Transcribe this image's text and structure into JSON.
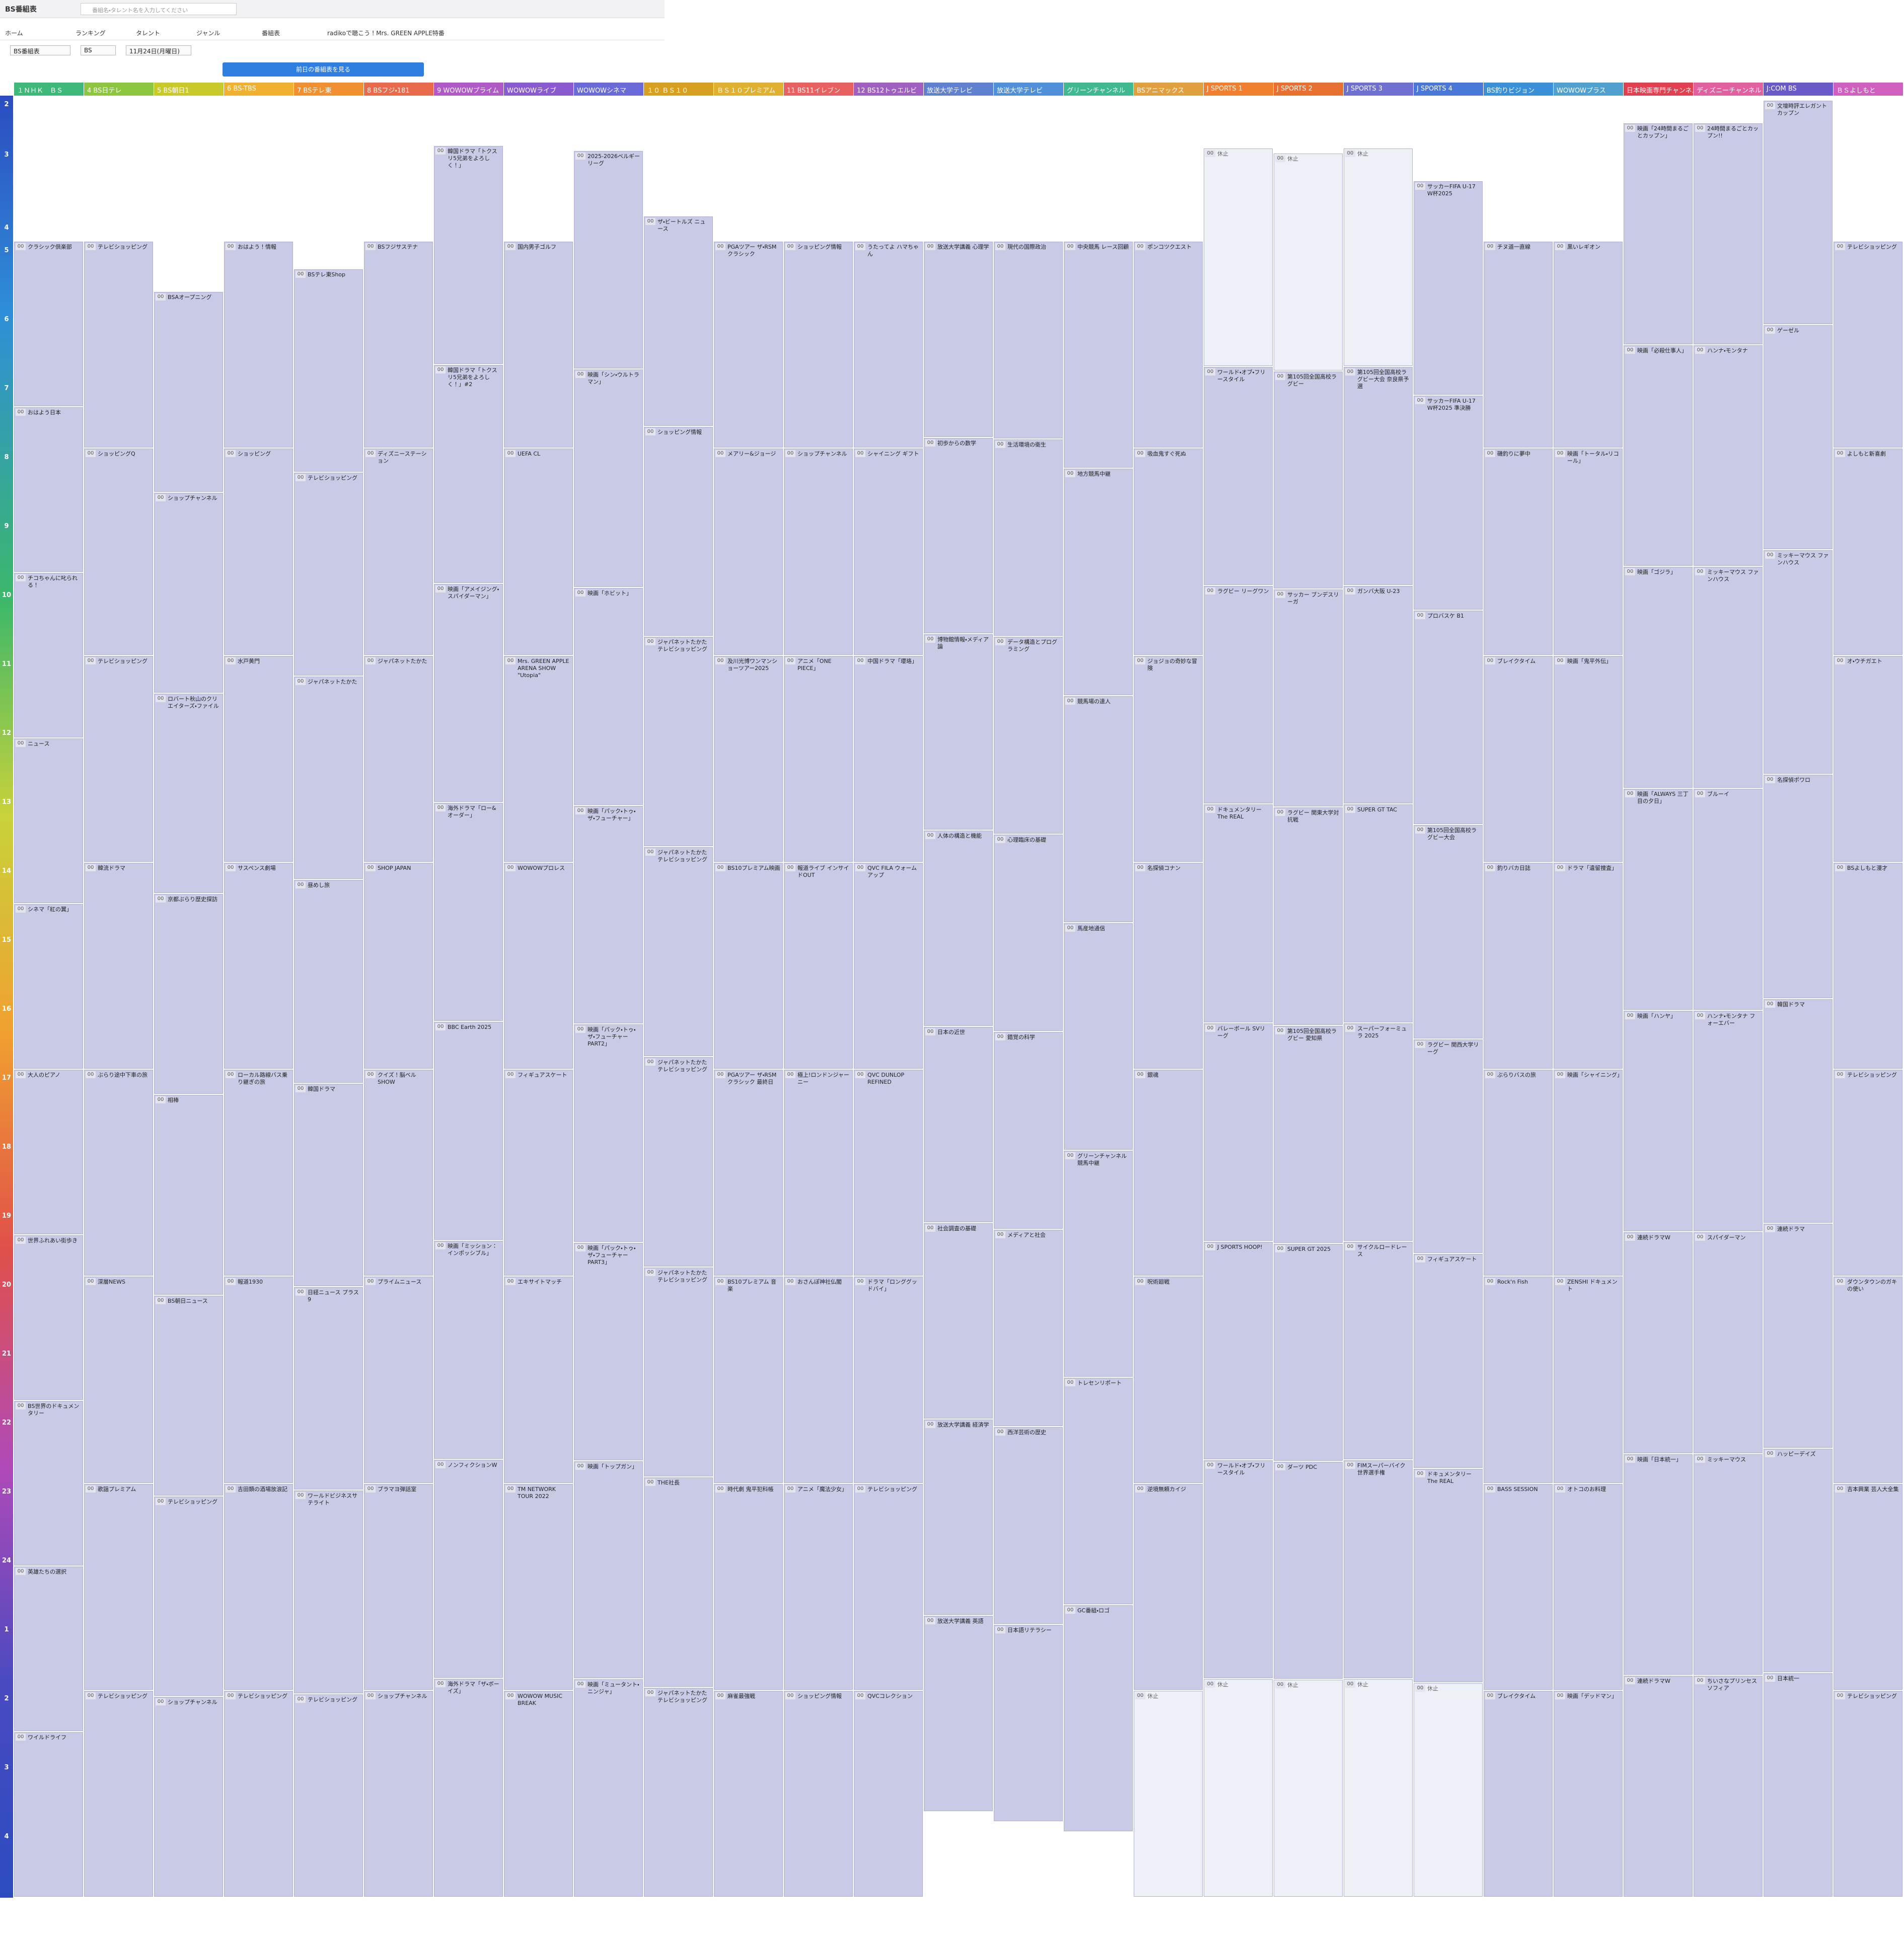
{
  "header": {
    "logo": "BS番組表",
    "search_placeholder": "番組名・タレント名を入力してください"
  },
  "nav": [
    "ホーム",
    "ランキング",
    "タレント",
    "ジャンル",
    "番組表",
    "radikoで聴こう！Mrs. GREEN APPLE特番"
  ],
  "filters": [
    "BS番組表",
    "BS",
    "11月24日(月曜日)"
  ],
  "prev_button": "前日の番組表を見る",
  "hours": [
    "2",
    "3",
    "4",
    "5",
    "6",
    "7",
    "8",
    "9",
    "10",
    "11",
    "12",
    "13",
    "14",
    "15",
    "16",
    "17",
    "18",
    "19",
    "20",
    "21",
    "22",
    "23",
    "24",
    "1",
    "2",
    "3",
    "4"
  ],
  "channels": [
    {
      "name": "１ＮＨＫ　ＢＳ",
      "programs": [
        {
          "min": "00",
          "title": "クラシック倶楽部"
        },
        {
          "min": "00",
          "title": "おはよう日本"
        },
        {
          "min": "00",
          "title": "チコちゃんに叱られる！"
        },
        {
          "min": "00",
          "title": "ニュース"
        },
        {
          "min": "00",
          "title": "シネマ「紅の翼」"
        },
        {
          "min": "00",
          "title": "大人のピアノ"
        },
        {
          "min": "00",
          "title": "世界ふれあい街歩き"
        },
        {
          "min": "00",
          "title": "BS世界のドキュメンタリー"
        },
        {
          "min": "00",
          "title": "英雄たちの選択"
        },
        {
          "min": "00",
          "title": "ワイルドライフ"
        }
      ]
    },
    {
      "name": "4 BS日テレ",
      "programs": [
        {
          "min": "00",
          "title": "テレビショッピング"
        },
        {
          "min": "00",
          "title": "ショッピングQ"
        },
        {
          "min": "00",
          "title": "テレビショッピング"
        },
        {
          "min": "00",
          "title": "韓流ドラマ"
        },
        {
          "min": "00",
          "title": "ぶらり途中下車の旅"
        },
        {
          "min": "00",
          "title": "深層NEWS"
        },
        {
          "min": "00",
          "title": "歌謡プレミアム"
        },
        {
          "min": "00",
          "title": "テレビショッピング"
        }
      ]
    },
    {
      "name": "5 BS朝日1",
      "programs": [
        {
          "min": "00",
          "title": "BSAオープニング"
        },
        {
          "min": "00",
          "title": "ショップチャンネル"
        },
        {
          "min": "00",
          "title": "ロバート秋山のクリエイターズ・ファイル"
        },
        {
          "min": "00",
          "title": "京都ぶらり歴史探訪"
        },
        {
          "min": "00",
          "title": "相棒"
        },
        {
          "min": "00",
          "title": "BS朝日ニュース"
        },
        {
          "min": "00",
          "title": "テレビショッピング"
        },
        {
          "min": "00",
          "title": "ショップチャンネル"
        }
      ]
    },
    {
      "name": "6 BS-TBS",
      "programs": [
        {
          "min": "00",
          "title": "おはよう！情報"
        },
        {
          "min": "00",
          "title": "ショッピング"
        },
        {
          "min": "00",
          "title": "水戸黄門"
        },
        {
          "min": "00",
          "title": "サスペンス劇場"
        },
        {
          "min": "00",
          "title": "ローカル路線バス乗り継ぎの旅"
        },
        {
          "min": "00",
          "title": "報道1930"
        },
        {
          "min": "00",
          "title": "吉田類の酒場放浪記"
        },
        {
          "min": "00",
          "title": "テレビショッピング"
        }
      ]
    },
    {
      "name": "7 BSテレ東",
      "programs": [
        {
          "min": "00",
          "title": "BSテレ東Shop"
        },
        {
          "min": "00",
          "title": "テレビショッピング"
        },
        {
          "min": "00",
          "title": "ジャパネットたかた"
        },
        {
          "min": "00",
          "title": "昼めし旅"
        },
        {
          "min": "00",
          "title": "韓国ドラマ"
        },
        {
          "min": "00",
          "title": "日経ニュース プラス9"
        },
        {
          "min": "00",
          "title": "ワールドビジネスサテライト"
        },
        {
          "min": "00",
          "title": "テレビショッピング"
        }
      ]
    },
    {
      "name": "8 BSフジ・181",
      "programs": [
        {
          "min": "00",
          "title": "BSフジサステナ"
        },
        {
          "min": "00",
          "title": "ディズニーステーション"
        },
        {
          "min": "00",
          "title": "ジャパネットたかた"
        },
        {
          "min": "00",
          "title": "SHOP JAPAN"
        },
        {
          "min": "00",
          "title": "クイズ！脳ベルSHOW"
        },
        {
          "min": "00",
          "title": "プライムニュース"
        },
        {
          "min": "00",
          "title": "ブラマヨ弾話室"
        },
        {
          "min": "00",
          "title": "ショップチャンネル"
        }
      ]
    },
    {
      "name": "9 WOWOWプライム",
      "programs": [
        {
          "min": "00",
          "title": "韓国ドラマ「トクスリ5兄弟をよろしく！」"
        },
        {
          "min": "00",
          "title": "韓国ドラマ「トクスリ5兄弟をよろしく！」#2"
        },
        {
          "min": "00",
          "title": "映画「アメイジング・スパイダーマン」"
        },
        {
          "min": "00",
          "title": "海外ドラマ「ロー&オーダー」"
        },
        {
          "min": "00",
          "title": "BBC Earth 2025"
        },
        {
          "min": "00",
          "title": "映画「ミッション：インポッシブル」"
        },
        {
          "min": "00",
          "title": "ノンフィクションW"
        },
        {
          "min": "00",
          "title": "海外ドラマ「ザ・ボーイズ」"
        }
      ]
    },
    {
      "name": "WOWOWライブ",
      "programs": [
        {
          "min": "00",
          "title": "国内男子ゴルフ"
        },
        {
          "min": "00",
          "title": "UEFA CL"
        },
        {
          "min": "00",
          "title": "Mrs. GREEN APPLE ARENA SHOW \"Utopia\""
        },
        {
          "min": "00",
          "title": "WOWOWプロレス"
        },
        {
          "min": "00",
          "title": "フィギュアスケート"
        },
        {
          "min": "00",
          "title": "エキサイトマッチ"
        },
        {
          "min": "00",
          "title": "TM NETWORK TOUR 2022"
        },
        {
          "min": "00",
          "title": "WOWOW MUSIC BREAK"
        }
      ]
    },
    {
      "name": "WOWOWシネマ",
      "programs": [
        {
          "min": "00",
          "title": "2025-2026ベルギーリーグ"
        },
        {
          "min": "00",
          "title": "映画「シン・ウルトラマン」"
        },
        {
          "min": "00",
          "title": "映画「ホビット」"
        },
        {
          "min": "00",
          "title": "映画「パック・トゥ・ザ・フューチャー」"
        },
        {
          "min": "00",
          "title": "映画「パック・トゥ・ザ・フューチャーPART2」"
        },
        {
          "min": "00",
          "title": "映画「パック・トゥ・ザ・フューチャーPART3」"
        },
        {
          "min": "00",
          "title": "映画「トップガン」"
        },
        {
          "min": "00",
          "title": "映画「ミュータント・ニンジャ」"
        }
      ]
    },
    {
      "name": "１０ ＢＳ１０",
      "programs": [
        {
          "min": "00",
          "title": "ザ・ビートルズ ニュース"
        },
        {
          "min": "00",
          "title": "ショッピング情報"
        },
        {
          "min": "00",
          "title": "ジャパネットたかた テレビショッピング"
        },
        {
          "min": "00",
          "title": "ジャパネットたかた テレビショッピング"
        },
        {
          "min": "00",
          "title": "ジャパネットたかた テレビショッピング"
        },
        {
          "min": "00",
          "title": "ジャパネットたかた テレビショッピング"
        },
        {
          "min": "00",
          "title": "THE社長"
        },
        {
          "min": "00",
          "title": "ジャパネットたかた テレビショッピング"
        }
      ]
    },
    {
      "name": "ＢＳ１０プレミアム",
      "programs": [
        {
          "min": "00",
          "title": "PGAツアー ザ・RSMクラシック"
        },
        {
          "min": "00",
          "title": "メアリー&ジョージ"
        },
        {
          "min": "00",
          "title": "及川光博ワンマンショーツアー2025"
        },
        {
          "min": "00",
          "title": "BS10プレミアム映画"
        },
        {
          "min": "00",
          "title": "PGAツアー ザ・RSMクラシック 最終日"
        },
        {
          "min": "00",
          "title": "BS10プレミアム 音楽"
        },
        {
          "min": "00",
          "title": "時代劇 鬼平犯科帳"
        },
        {
          "min": "00",
          "title": "麻雀最強戦"
        }
      ]
    },
    {
      "name": "11 BS11イレブン",
      "programs": [
        {
          "min": "00",
          "title": "ショッピング情報"
        },
        {
          "min": "00",
          "title": "ショップチャンネル"
        },
        {
          "min": "00",
          "title": "アニメ「ONE PIECE」"
        },
        {
          "min": "00",
          "title": "報道ライブ インサイドOUT"
        },
        {
          "min": "00",
          "title": "極上!ロンドンジャーニー"
        },
        {
          "min": "00",
          "title": "おさんぽ神社仏閣"
        },
        {
          "min": "00",
          "title": "アニメ「魔法少女」"
        },
        {
          "min": "00",
          "title": "ショッピング情報"
        }
      ]
    },
    {
      "name": "12 BS12トゥエルビ",
      "programs": [
        {
          "min": "00",
          "title": "うたってよ ハマちゃん"
        },
        {
          "min": "00",
          "title": "シャイニング ギフト"
        },
        {
          "min": "00",
          "title": "中国ドラマ「瓔珞」"
        },
        {
          "min": "00",
          "title": "QVC FILA ウォームアップ"
        },
        {
          "min": "00",
          "title": "QVC DUNLOP REFINED"
        },
        {
          "min": "00",
          "title": "ドラマ「ロンググッドバイ」"
        },
        {
          "min": "00",
          "title": "テレビショッピング"
        },
        {
          "min": "00",
          "title": "QVCコレクション"
        }
      ]
    },
    {
      "name": "放送大学テレビ",
      "programs": [
        {
          "min": "00",
          "title": "放送大学講義 心理学"
        },
        {
          "min": "00",
          "title": "初歩からの数学"
        },
        {
          "min": "00",
          "title": "博物館情報・メディア論"
        },
        {
          "min": "00",
          "title": "人体の構造と機能"
        },
        {
          "min": "00",
          "title": "日本の近世"
        },
        {
          "min": "00",
          "title": "社会調査の基礎"
        },
        {
          "min": "00",
          "title": "放送大学講義 経済学"
        },
        {
          "min": "00",
          "title": "放送大学講義 英語"
        }
      ]
    },
    {
      "name": "放送大学テレビ",
      "programs": [
        {
          "min": "00",
          "title": "現代の国際政治"
        },
        {
          "min": "00",
          "title": "生活環境の衛生"
        },
        {
          "min": "00",
          "title": "データ構造とプログラミング"
        },
        {
          "min": "00",
          "title": "心理臨床の基礎"
        },
        {
          "min": "00",
          "title": "錯覚の科学"
        },
        {
          "min": "00",
          "title": "メディアと社会"
        },
        {
          "min": "00",
          "title": "西洋芸術の歴史"
        },
        {
          "min": "00",
          "title": "日本語リテラシー"
        }
      ]
    },
    {
      "name": "グリーンチャンネル",
      "programs": [
        {
          "min": "00",
          "title": "中央競馬 レース回顧"
        },
        {
          "min": "00",
          "title": "地方競馬中継"
        },
        {
          "min": "00",
          "title": "競馬場の達人"
        },
        {
          "min": "00",
          "title": "馬産地通信"
        },
        {
          "min": "00",
          "title": "グリーンチャンネル 競馬中継"
        },
        {
          "min": "00",
          "title": "トレセンリポート"
        },
        {
          "min": "00",
          "title": "GC番組・ロゴ"
        }
      ]
    },
    {
      "name": "BSアニマックス",
      "programs": [
        {
          "min": "00",
          "title": "ポンコツクエスト"
        },
        {
          "min": "00",
          "title": "吸血鬼すぐ死ぬ"
        },
        {
          "min": "00",
          "title": "ジョジョの奇妙な冒険"
        },
        {
          "min": "00",
          "title": "名探偵コナン"
        },
        {
          "min": "00",
          "title": "銀魂"
        },
        {
          "min": "00",
          "title": "呪術廻戦"
        },
        {
          "min": "00",
          "title": "逆境無頼カイジ"
        },
        {
          "min": "00",
          "title": "休止"
        }
      ]
    },
    {
      "name": "J SPORTS 1",
      "programs": [
        {
          "min": "00",
          "title": "休止"
        },
        {
          "min": "00",
          "title": "ワールド・オブ・フリースタイル"
        },
        {
          "min": "00",
          "title": "ラグビー リーグワン"
        },
        {
          "min": "00",
          "title": "ドキュメンタリー The REAL"
        },
        {
          "min": "00",
          "title": "バレーボール SVリーグ"
        },
        {
          "min": "00",
          "title": "J SPORTS HOOP!"
        },
        {
          "min": "00",
          "title": "ワールド・オブ・フリースタイル"
        },
        {
          "min": "00",
          "title": "休止"
        }
      ]
    },
    {
      "name": "J SPORTS 2",
      "programs": [
        {
          "min": "00",
          "title": "休止"
        },
        {
          "min": "00",
          "title": "第105回全国高校ラグビー"
        },
        {
          "min": "00",
          "title": "サッカー ブンデスリーガ"
        },
        {
          "min": "00",
          "title": "ラグビー 関東大学対抗戦"
        },
        {
          "min": "00",
          "title": "第105回全国高校ラグビー 愛知県"
        },
        {
          "min": "00",
          "title": "SUPER GT 2025"
        },
        {
          "min": "00",
          "title": "ダーツ PDC"
        },
        {
          "min": "00",
          "title": "休止"
        }
      ]
    },
    {
      "name": "J SPORTS 3",
      "programs": [
        {
          "min": "00",
          "title": "休止"
        },
        {
          "min": "00",
          "title": "第105回全国高校ラグビー大会 奈良県予選"
        },
        {
          "min": "00",
          "title": "ガンバ大阪 U-23"
        },
        {
          "min": "00",
          "title": "SUPER GT TAC"
        },
        {
          "min": "00",
          "title": "スーパーフォーミュラ 2025"
        },
        {
          "min": "00",
          "title": "サイクルロードレース"
        },
        {
          "min": "00",
          "title": "FIMスーパーバイク世界選手権"
        },
        {
          "min": "00",
          "title": "休止"
        }
      ]
    },
    {
      "name": "J SPORTS 4",
      "programs": [
        {
          "min": "00",
          "title": "サッカーFIFA U-17 W杯2025"
        },
        {
          "min": "00",
          "title": "サッカーFIFA U-17 W杯2025 準決勝"
        },
        {
          "min": "00",
          "title": "プロバスケ B1"
        },
        {
          "min": "00",
          "title": "第105回全国高校ラグビー大会"
        },
        {
          "min": "00",
          "title": "ラグビー 関西大学リーグ"
        },
        {
          "min": "00",
          "title": "フィギュアスケート"
        },
        {
          "min": "00",
          "title": "ドキュメンタリー The REAL"
        },
        {
          "min": "00",
          "title": "休止"
        }
      ]
    },
    {
      "name": "BS釣りビジョン",
      "programs": [
        {
          "min": "00",
          "title": "チヌ道一直線"
        },
        {
          "min": "00",
          "title": "磯釣りに夢中"
        },
        {
          "min": "00",
          "title": "ブレイクタイム"
        },
        {
          "min": "00",
          "title": "釣りバカ日誌"
        },
        {
          "min": "00",
          "title": "ぶらりバスの旅"
        },
        {
          "min": "00",
          "title": "Rock'n Fish"
        },
        {
          "min": "00",
          "title": "BASS SESSION"
        },
        {
          "min": "00",
          "title": "ブレイクタイム"
        }
      ]
    },
    {
      "name": "WOWOWプラス",
      "programs": [
        {
          "min": "00",
          "title": "黒いレギオン"
        },
        {
          "min": "00",
          "title": "映画「トータル・リコール」"
        },
        {
          "min": "00",
          "title": "映画「鬼平外伝」"
        },
        {
          "min": "00",
          "title": "ドラマ「遺留捜査」"
        },
        {
          "min": "00",
          "title": "映画「シャイニング」"
        },
        {
          "min": "00",
          "title": "ZENSHI ドキュメント"
        },
        {
          "min": "00",
          "title": "オトコのお料理"
        },
        {
          "min": "00",
          "title": "映画「デッドマン」"
        }
      ]
    },
    {
      "name": "日本映画専門チャンネル",
      "programs": [
        {
          "min": "00",
          "title": "映画「24時間まるごとカップン」"
        },
        {
          "min": "00",
          "title": "映画「必殺仕事人」"
        },
        {
          "min": "00",
          "title": "映画「ゴジラ」"
        },
        {
          "min": "00",
          "title": "映画「ALWAYS 三丁目の夕日」"
        },
        {
          "min": "00",
          "title": "映画「ハンヤ」"
        },
        {
          "min": "00",
          "title": "連続ドラマW"
        },
        {
          "min": "00",
          "title": "映画「日本統一」"
        },
        {
          "min": "00",
          "title": "連続ドラマW"
        }
      ]
    },
    {
      "name": "ディズニーチャンネル",
      "programs": [
        {
          "min": "00",
          "title": "24時間まるごとカップン!!"
        },
        {
          "min": "00",
          "title": "ハンナ・モンタナ"
        },
        {
          "min": "00",
          "title": "ミッキーマウス ファンハウス"
        },
        {
          "min": "00",
          "title": "ブルーイ"
        },
        {
          "min": "00",
          "title": "ハンナ・モンタナ フォーエバー"
        },
        {
          "min": "00",
          "title": "スパイダーマン"
        },
        {
          "min": "00",
          "title": "ミッキーマウス"
        },
        {
          "min": "00",
          "title": "ちいさなプリンセス ソフィア"
        }
      ]
    },
    {
      "name": "J:COM BS",
      "programs": [
        {
          "min": "00",
          "title": "文壇時評エレガントカップン"
        },
        {
          "min": "00",
          "title": "ゲーゼル"
        },
        {
          "min": "00",
          "title": "ミッキーマウス ファンハウス"
        },
        {
          "min": "00",
          "title": "名探偵ポワロ"
        },
        {
          "min": "00",
          "title": "韓国ドラマ"
        },
        {
          "min": "00",
          "title": "連続ドラマ"
        },
        {
          "min": "00",
          "title": "ハッピーデイズ"
        },
        {
          "min": "00",
          "title": "日本統一"
        }
      ]
    },
    {
      "name": "ＢＳよしもと",
      "programs": [
        {
          "min": "00",
          "title": "テレビショッピング"
        },
        {
          "min": "00",
          "title": "よしもと新喜劇"
        },
        {
          "min": "00",
          "title": "オ・ウチガエト"
        },
        {
          "min": "00",
          "title": "BSよしもと漫才"
        },
        {
          "min": "00",
          "title": "テレビショッピング"
        },
        {
          "min": "00",
          "title": "ダウンタウンのガキの使い"
        },
        {
          "min": "00",
          "title": "吉本興業 芸人大全集"
        },
        {
          "min": "00",
          "title": "テレビショッピング"
        }
      ]
    }
  ]
}
